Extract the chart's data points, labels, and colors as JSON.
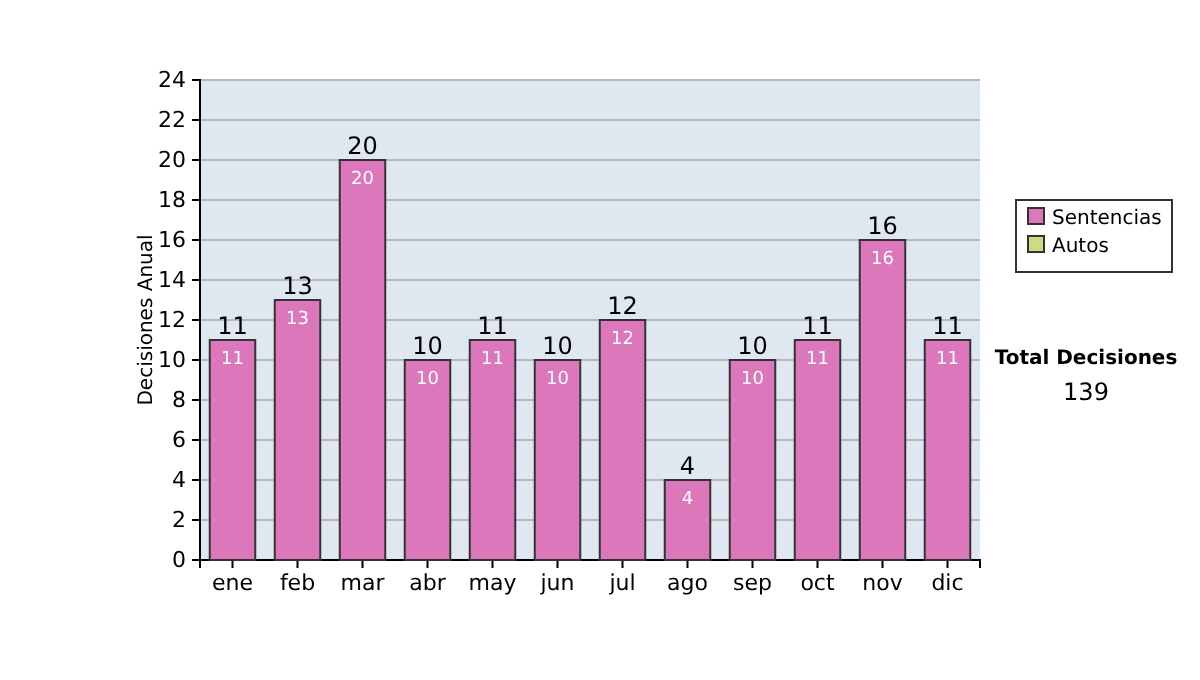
{
  "chart_data": {
    "type": "bar",
    "ylabel": "Decisiones Anual",
    "categories": [
      "ene",
      "feb",
      "mar",
      "abr",
      "may",
      "jun",
      "jul",
      "ago",
      "sep",
      "oct",
      "nov",
      "dic"
    ],
    "series": [
      {
        "name": "Sentencias",
        "color": "#dd77bb",
        "values": [
          11,
          13,
          20,
          10,
          11,
          10,
          12,
          4,
          10,
          11,
          16,
          11
        ],
        "value_labels": [
          "11",
          "13",
          "20",
          "10",
          "11",
          "10",
          "12",
          "4",
          "10",
          "11",
          "16",
          "11"
        ]
      },
      {
        "name": "Autos",
        "color": "#ccdd88",
        "values": [
          null,
          null,
          null,
          null,
          null,
          null,
          null,
          null,
          null,
          null,
          null,
          null
        ]
      }
    ],
    "totals": [
      "11",
      "13",
      "20",
      "10",
      "11",
      "10",
      "12",
      "4",
      "10",
      "11",
      "16",
      "11"
    ],
    "ylim": [
      0,
      24
    ],
    "yticks": [
      0,
      2,
      4,
      6,
      8,
      10,
      12,
      14,
      16,
      18,
      20,
      22,
      24
    ],
    "grid": "y",
    "legend": "right",
    "annotations": [
      "Total Decisiones",
      "139"
    ]
  }
}
